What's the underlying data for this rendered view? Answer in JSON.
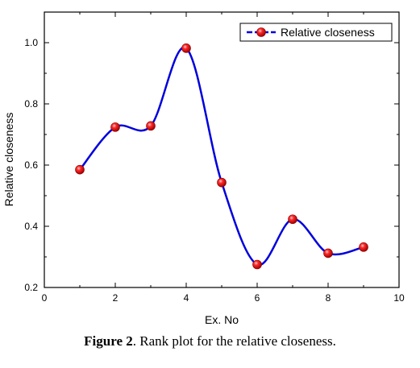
{
  "chart_data": {
    "type": "line",
    "title": "",
    "xlabel": "Ex. No",
    "ylabel": "Relative closeness",
    "xlim": [
      0,
      10
    ],
    "ylim": [
      0.2,
      1.1
    ],
    "xticks": [
      0,
      2,
      4,
      6,
      8,
      10
    ],
    "yticks": [
      0.2,
      0.4,
      0.6,
      0.8,
      1.0
    ],
    "xtick_labels": [
      "0",
      "2",
      "4",
      "6",
      "8",
      "10"
    ],
    "ytick_labels": [
      "0.2",
      "0.4",
      "0.6",
      "0.8",
      "1.0"
    ],
    "grid": false,
    "legend_position": "top-right",
    "series": [
      {
        "name": "Relative closeness",
        "line_color": "#0000dd",
        "marker_color": "#e00000",
        "x": [
          1,
          2,
          3,
          4,
          5,
          6,
          7,
          8,
          9
        ],
        "y": [
          0.585,
          0.724,
          0.728,
          0.982,
          0.543,
          0.275,
          0.423,
          0.312,
          0.332
        ]
      }
    ]
  },
  "caption": {
    "label": "Figure 2",
    "text": ". Rank plot for the relative closeness."
  }
}
